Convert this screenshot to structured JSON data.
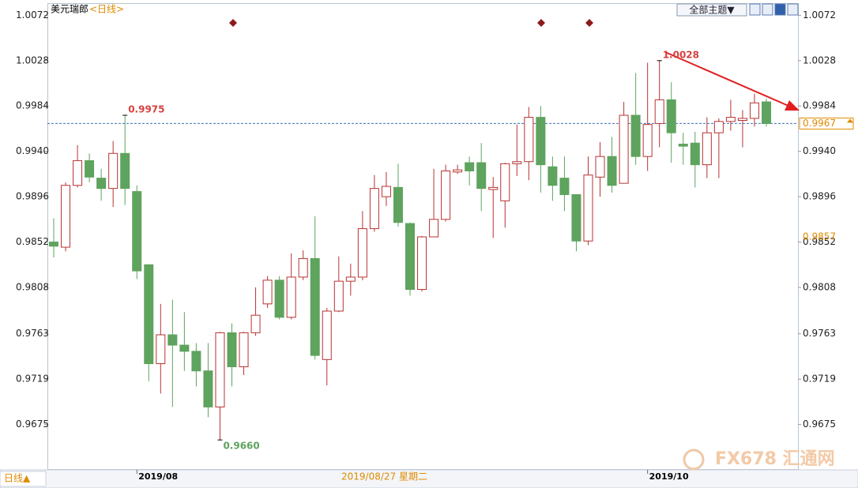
{
  "chart_data": {
    "type": "candlestick",
    "title": "美元瑞郎",
    "period": "<日线>",
    "theme_button": "全部主题▼",
    "period_button": "日线▲",
    "crosshair_label": "2019/08/27 星期二",
    "watermark": "FX678 汇通网",
    "up_color": "#b83232",
    "down_color": "#5ea35e",
    "categories": [
      null,
      null,
      null,
      null,
      null,
      null,
      null,
      "2019/08",
      null,
      null,
      null,
      null,
      null,
      null,
      null,
      null,
      null,
      null,
      null,
      null,
      null,
      null,
      null,
      null,
      null,
      null,
      null,
      null,
      null,
      null,
      null,
      null,
      null,
      null,
      null,
      null,
      null,
      null,
      null,
      null,
      null,
      null,
      null,
      null,
      null,
      null,
      null,
      null,
      null,
      null,
      "2019/10",
      null,
      null,
      null,
      null,
      null,
      null,
      null,
      null,
      null,
      null
    ],
    "open": [
      0.9852,
      0.9847,
      0.9907,
      0.9931,
      0.9914,
      0.9904,
      0.9938,
      0.9901,
      0.983,
      0.9734,
      0.9762,
      0.9752,
      0.9746,
      0.9727,
      0.9692,
      0.9764,
      0.9731,
      0.9764,
      0.9792,
      0.9815,
      0.9779,
      0.9818,
      0.9836,
      0.9738,
      0.9785,
      0.9814,
      0.9818,
      0.9865,
      0.9896,
      0.9905,
      0.987,
      0.9806,
      0.9857,
      0.9874,
      0.992,
      0.9929,
      0.9929,
      0.9903,
      0.9892,
      0.9928,
      0.993,
      0.9973,
      0.9925,
      0.9914,
      0.9898,
      0.9853,
      0.9915,
      0.9935,
      0.9909,
      0.9975,
      0.9935,
      0.9967,
      0.999,
      0.9947,
      0.9948,
      0.9927,
      0.9958,
      0.9969,
      0.997,
      0.9972,
      0.9988
    ],
    "high": [
      0.9875,
      0.991,
      0.9946,
      0.9938,
      0.9923,
      0.995,
      0.9975,
      0.9907,
      0.983,
      0.9792,
      0.9796,
      0.9784,
      0.9754,
      0.9754,
      0.9765,
      0.9773,
      0.9765,
      0.9808,
      0.9819,
      0.9819,
      0.9841,
      0.9844,
      0.9877,
      0.9788,
      0.9838,
      0.9831,
      0.9882,
      0.9917,
      0.992,
      0.9928,
      0.9871,
      0.9858,
      0.9923,
      0.9927,
      0.9927,
      0.9935,
      0.9948,
      0.9915,
      0.9929,
      0.9966,
      0.9983,
      0.9984,
      0.9935,
      0.9935,
      0.9898,
      0.9935,
      0.9949,
      0.9954,
      0.9988,
      1.0016,
      1.0026,
      1.0028,
      1.0007,
      0.9958,
      0.9959,
      0.9973,
      0.9972,
      0.999,
      0.998,
      0.9996,
      0.9991
    ],
    "low": [
      0.9837,
      0.9843,
      0.9905,
      0.991,
      0.9892,
      0.9886,
      0.9888,
      0.9816,
      0.9717,
      0.9705,
      0.9692,
      0.9727,
      0.9712,
      0.9682,
      0.966,
      0.9712,
      0.9723,
      0.9761,
      0.9788,
      0.9777,
      0.9777,
      0.9815,
      0.9738,
      0.9713,
      0.9784,
      0.98,
      0.9815,
      0.9862,
      0.9887,
      0.9867,
      0.98,
      0.9804,
      0.9857,
      0.9872,
      0.9918,
      0.9907,
      0.9882,
      0.9856,
      0.9866,
      0.9916,
      0.9912,
      0.99,
      0.9892,
      0.9882,
      0.9843,
      0.9849,
      0.9896,
      0.99,
      0.9909,
      0.9927,
      0.9921,
      0.9944,
      0.9929,
      0.9927,
      0.9905,
      0.9914,
      0.9914,
      0.996,
      0.9944,
      0.9964,
      0.9964
    ],
    "close": [
      0.9848,
      0.9907,
      0.9931,
      0.9915,
      0.9904,
      0.9938,
      0.9904,
      0.9824,
      0.9734,
      0.9762,
      0.9752,
      0.9746,
      0.9727,
      0.9692,
      0.9764,
      0.9731,
      0.9764,
      0.9781,
      0.9815,
      0.9779,
      0.9818,
      0.9836,
      0.9742,
      0.9785,
      0.9814,
      0.9818,
      0.9865,
      0.9904,
      0.9906,
      0.9871,
      0.9806,
      0.9857,
      0.9874,
      0.9921,
      0.9922,
      0.9921,
      0.9904,
      0.9905,
      0.9928,
      0.993,
      0.9973,
      0.9927,
      0.9907,
      0.9898,
      0.9853,
      0.9917,
      0.9935,
      0.9907,
      0.9975,
      0.9935,
      0.9966,
      0.999,
      0.9958,
      0.9945,
      0.9927,
      0.9958,
      0.9969,
      0.9973,
      0.9972,
      0.9987,
      0.9967
    ],
    "ylim": [
      0.9631,
      1.0083
    ],
    "yticks": [
      1.0072,
      1.0028,
      0.9984,
      {
        "value": 0.994,
        "label": "0.9940"
      },
      0.9896,
      0.9852,
      0.9808,
      0.9763,
      0.9719,
      0.9675
    ],
    "annotations": [
      {
        "value": 0.9975,
        "label": "0.9975"
      },
      {
        "value": 1.0028,
        "label": "1.0028"
      },
      {
        "value": 0.966,
        "label": "0.9660"
      }
    ],
    "last_price": {
      "value": 0.9967,
      "label": "0.9967"
    },
    "reference_price": {
      "value": 0.9857,
      "label": "0.9857"
    }
  }
}
